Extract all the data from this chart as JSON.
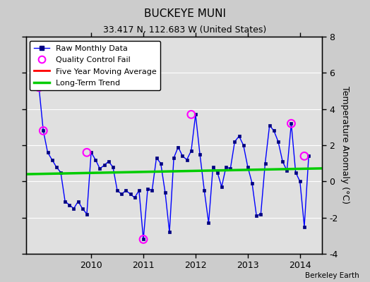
{
  "title": "BUCKEYE MUNI",
  "subtitle": "33.417 N, 112.683 W (United States)",
  "ylabel": "Temperature Anomaly (°C)",
  "attribution": "Berkeley Earth",
  "ylim": [
    -4,
    8
  ],
  "yticks": [
    -4,
    -2,
    0,
    2,
    4,
    6,
    8
  ],
  "xlim": [
    2008.75,
    2014.42
  ],
  "xticks": [
    2010,
    2011,
    2012,
    2013,
    2014
  ],
  "background_color": "#cccccc",
  "plot_bg_color": "#e0e0e0",
  "raw_data_x": [
    2009.0,
    2009.083,
    2009.167,
    2009.25,
    2009.333,
    2009.417,
    2009.5,
    2009.583,
    2009.667,
    2009.75,
    2009.833,
    2009.917,
    2010.0,
    2010.083,
    2010.167,
    2010.25,
    2010.333,
    2010.417,
    2010.5,
    2010.583,
    2010.667,
    2010.75,
    2010.833,
    2010.917,
    2011.0,
    2011.083,
    2011.167,
    2011.25,
    2011.333,
    2011.417,
    2011.5,
    2011.583,
    2011.667,
    2011.75,
    2011.833,
    2011.917,
    2012.0,
    2012.083,
    2012.167,
    2012.25,
    2012.333,
    2012.417,
    2012.5,
    2012.583,
    2012.667,
    2012.75,
    2012.833,
    2012.917,
    2013.0,
    2013.083,
    2013.167,
    2013.25,
    2013.333,
    2013.417,
    2013.5,
    2013.583,
    2013.667,
    2013.75,
    2013.833,
    2013.917,
    2014.0,
    2014.083,
    2014.167
  ],
  "raw_data_y": [
    5.2,
    2.8,
    1.6,
    1.2,
    0.8,
    0.5,
    -1.1,
    -1.3,
    -1.5,
    -1.1,
    -1.5,
    -1.8,
    1.6,
    1.2,
    0.7,
    0.9,
    1.1,
    0.8,
    -0.5,
    -0.7,
    -0.5,
    -0.7,
    -0.9,
    -0.5,
    -3.2,
    -0.4,
    -0.5,
    1.3,
    1.0,
    -0.6,
    -2.8,
    1.3,
    1.9,
    1.4,
    1.2,
    1.7,
    3.7,
    1.5,
    -0.5,
    -2.3,
    0.8,
    0.5,
    -0.3,
    0.8,
    0.7,
    2.2,
    2.5,
    2.0,
    0.8,
    -0.1,
    -1.9,
    -1.8,
    1.0,
    3.1,
    2.8,
    2.2,
    1.1,
    0.6,
    3.2,
    0.5,
    0.0,
    -2.5,
    1.4
  ],
  "qc_fail_x": [
    2009.0,
    2009.083,
    2009.917,
    2011.0,
    2011.917,
    2013.833,
    2014.083
  ],
  "qc_fail_y": [
    5.2,
    2.8,
    1.6,
    -3.2,
    3.7,
    3.2,
    1.4
  ],
  "trend_x": [
    2008.75,
    2014.42
  ],
  "trend_y": [
    0.4,
    0.72
  ],
  "line_color": "#0000ff",
  "dot_color": "#000080",
  "qc_color": "magenta",
  "trend_color": "#00cc00",
  "ma_color": "red",
  "grid_color": "#ffffff",
  "title_fontsize": 11,
  "subtitle_fontsize": 9,
  "tick_fontsize": 9,
  "legend_fontsize": 8
}
